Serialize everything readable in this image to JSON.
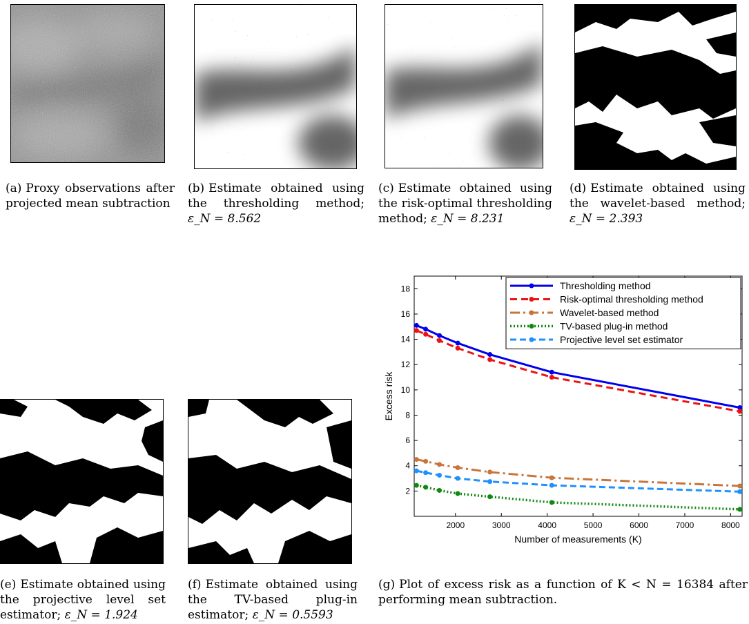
{
  "panels": [
    {
      "id": "a",
      "label": "(a)",
      "caption": "Proxy observations after projected mean subtraction",
      "eps": ""
    },
    {
      "id": "b",
      "label": "(b)",
      "caption": "Estimate obtained using the thresholding method; ",
      "eps": "ε_N = 8.562"
    },
    {
      "id": "c",
      "label": "(c)",
      "caption": "Estimate obtained using the risk-optimal thresholding method; ",
      "eps": "ε_N = 8.231"
    },
    {
      "id": "d",
      "label": "(d)",
      "caption": "Estimate obtained using the wavelet-based method; ",
      "eps": "ε_N = 2.393"
    },
    {
      "id": "e",
      "label": "(e)",
      "caption": "Estimate obtained using the projective level set estimator; ",
      "eps": "ε_N = 1.924"
    },
    {
      "id": "f",
      "label": "(f)",
      "caption": "Estimate obtained using the TV-based plug-in estimator; ",
      "eps": "ε_N = 0.5593"
    },
    {
      "id": "g",
      "label": "(g)",
      "caption": "Plot of excess risk as a function of K < N = 16384 after performing mean subtraction.",
      "eps": ""
    }
  ],
  "chart_data": {
    "type": "line",
    "xlabel": "Number of measurements (K)",
    "ylabel": "Excess risk",
    "xlim": [
      1100,
      8250
    ],
    "ylim": [
      0,
      19
    ],
    "xticks": [
      2000,
      3000,
      4000,
      5000,
      6000,
      7000,
      8000
    ],
    "yticks": [
      2,
      4,
      6,
      8,
      10,
      12,
      14,
      16,
      18
    ],
    "legend_position": "top-right",
    "x": [
      1150,
      1350,
      1650,
      2050,
      2750,
      4100,
      8200
    ],
    "series": [
      {
        "name": "Thresholding method",
        "color": "#0000ee",
        "dash": "",
        "width": 3,
        "values": [
          15.1,
          14.8,
          14.3,
          13.7,
          12.8,
          11.4,
          8.6
        ]
      },
      {
        "name": "Risk-optimal thresholding method",
        "color": "#ee1111",
        "dash": "10,6",
        "width": 3,
        "values": [
          14.7,
          14.4,
          13.9,
          13.3,
          12.4,
          11.0,
          8.3
        ]
      },
      {
        "name": "Wavelet-based method",
        "color": "#c8743a",
        "dash": "14,5,3,5",
        "width": 3,
        "values": [
          4.5,
          4.35,
          4.1,
          3.85,
          3.5,
          3.05,
          2.4
        ]
      },
      {
        "name": "TV-based plug-in method",
        "color": "#118811",
        "dash": "2,3",
        "width": 3.5,
        "values": [
          2.45,
          2.3,
          2.05,
          1.8,
          1.55,
          1.1,
          0.55
        ]
      },
      {
        "name": "Projective level set estimator",
        "color": "#1e90ff",
        "dash": "9,5",
        "width": 3,
        "values": [
          3.6,
          3.45,
          3.25,
          3.0,
          2.75,
          2.45,
          1.95
        ]
      }
    ]
  }
}
